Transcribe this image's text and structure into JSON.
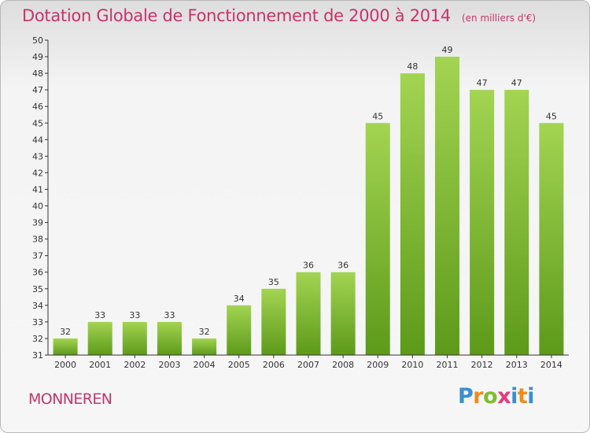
{
  "header": {
    "title": "Dotation Globale de Fonctionnement de 2000 à 2014",
    "unit": "(en milliers d'€)"
  },
  "footer": {
    "commune": "MONNEREN",
    "logo_text": "Proxiti"
  },
  "colors": {
    "title": "#c8336b",
    "bar_top": "#a3d452",
    "bar_bottom": "#5d9a1a",
    "axis": "#333333"
  },
  "chart_data": {
    "type": "bar",
    "title": "Dotation Globale de Fonctionnement de 2000 à 2014",
    "subtitle": "(en milliers d'€)",
    "xlabel": "",
    "ylabel": "",
    "categories": [
      "2000",
      "2001",
      "2002",
      "2003",
      "2004",
      "2005",
      "2006",
      "2007",
      "2008",
      "2009",
      "2010",
      "2011",
      "2012",
      "2013",
      "2014"
    ],
    "values": [
      32,
      33,
      33,
      33,
      32,
      34,
      35,
      36,
      36,
      45,
      48,
      49,
      47,
      47,
      45
    ],
    "ylim": [
      31,
      50
    ],
    "yticks": [
      31,
      32,
      33,
      34,
      35,
      36,
      37,
      38,
      39,
      40,
      41,
      42,
      43,
      44,
      45,
      46,
      47,
      48,
      49,
      50
    ],
    "grid": false,
    "data_labels": true
  }
}
